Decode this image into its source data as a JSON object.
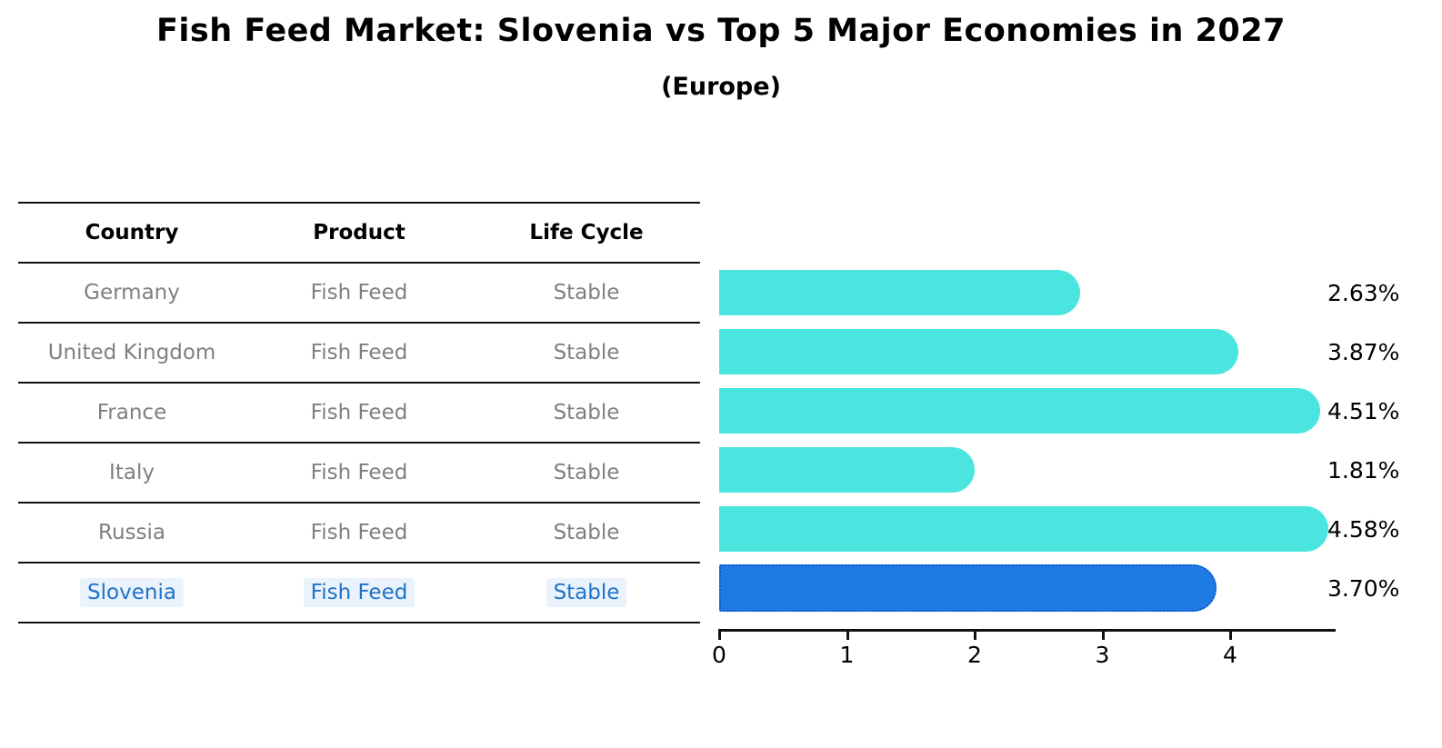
{
  "chart_data": {
    "type": "bar",
    "orientation": "horizontal",
    "title": "Fish Feed Market: Slovenia vs Top 5 Major Economies in 2027",
    "subtitle": "(Europe)",
    "table": {
      "headers": [
        "Country",
        "Product",
        "Life Cycle"
      ],
      "rows": [
        {
          "country": "Germany",
          "product": "Fish Feed",
          "life_cycle": "Stable"
        },
        {
          "country": "United Kingdom",
          "product": "Fish Feed",
          "life_cycle": "Stable"
        },
        {
          "country": "France",
          "product": "Fish Feed",
          "life_cycle": "Stable"
        },
        {
          "country": "Italy",
          "product": "Fish Feed",
          "life_cycle": "Stable"
        },
        {
          "country": "Russia",
          "product": "Fish Feed",
          "life_cycle": "Stable"
        },
        {
          "country": "Slovenia",
          "product": "Fish Feed",
          "life_cycle": "Stable"
        }
      ]
    },
    "categories": [
      "Germany",
      "United Kingdom",
      "France",
      "Italy",
      "Russia",
      "Slovenia"
    ],
    "values": [
      2.63,
      3.87,
      4.51,
      1.81,
      4.58,
      3.7
    ],
    "value_labels": [
      "2.63%",
      "3.87%",
      "4.51%",
      "1.81%",
      "4.58%",
      "3.70%"
    ],
    "highlight_index": 5,
    "xticks": [
      "0",
      "1",
      "2",
      "3",
      "4"
    ],
    "xlim": [
      0,
      4.81
    ],
    "grid": false,
    "legend": "none",
    "colors": {
      "bar": "#4AE5DF",
      "highlight_bar": "#1E7BE4",
      "highlight_border": "#1356C9",
      "highlight_text": "#1F72C8",
      "table_text": "#808080",
      "header_text": "#000000"
    }
  }
}
